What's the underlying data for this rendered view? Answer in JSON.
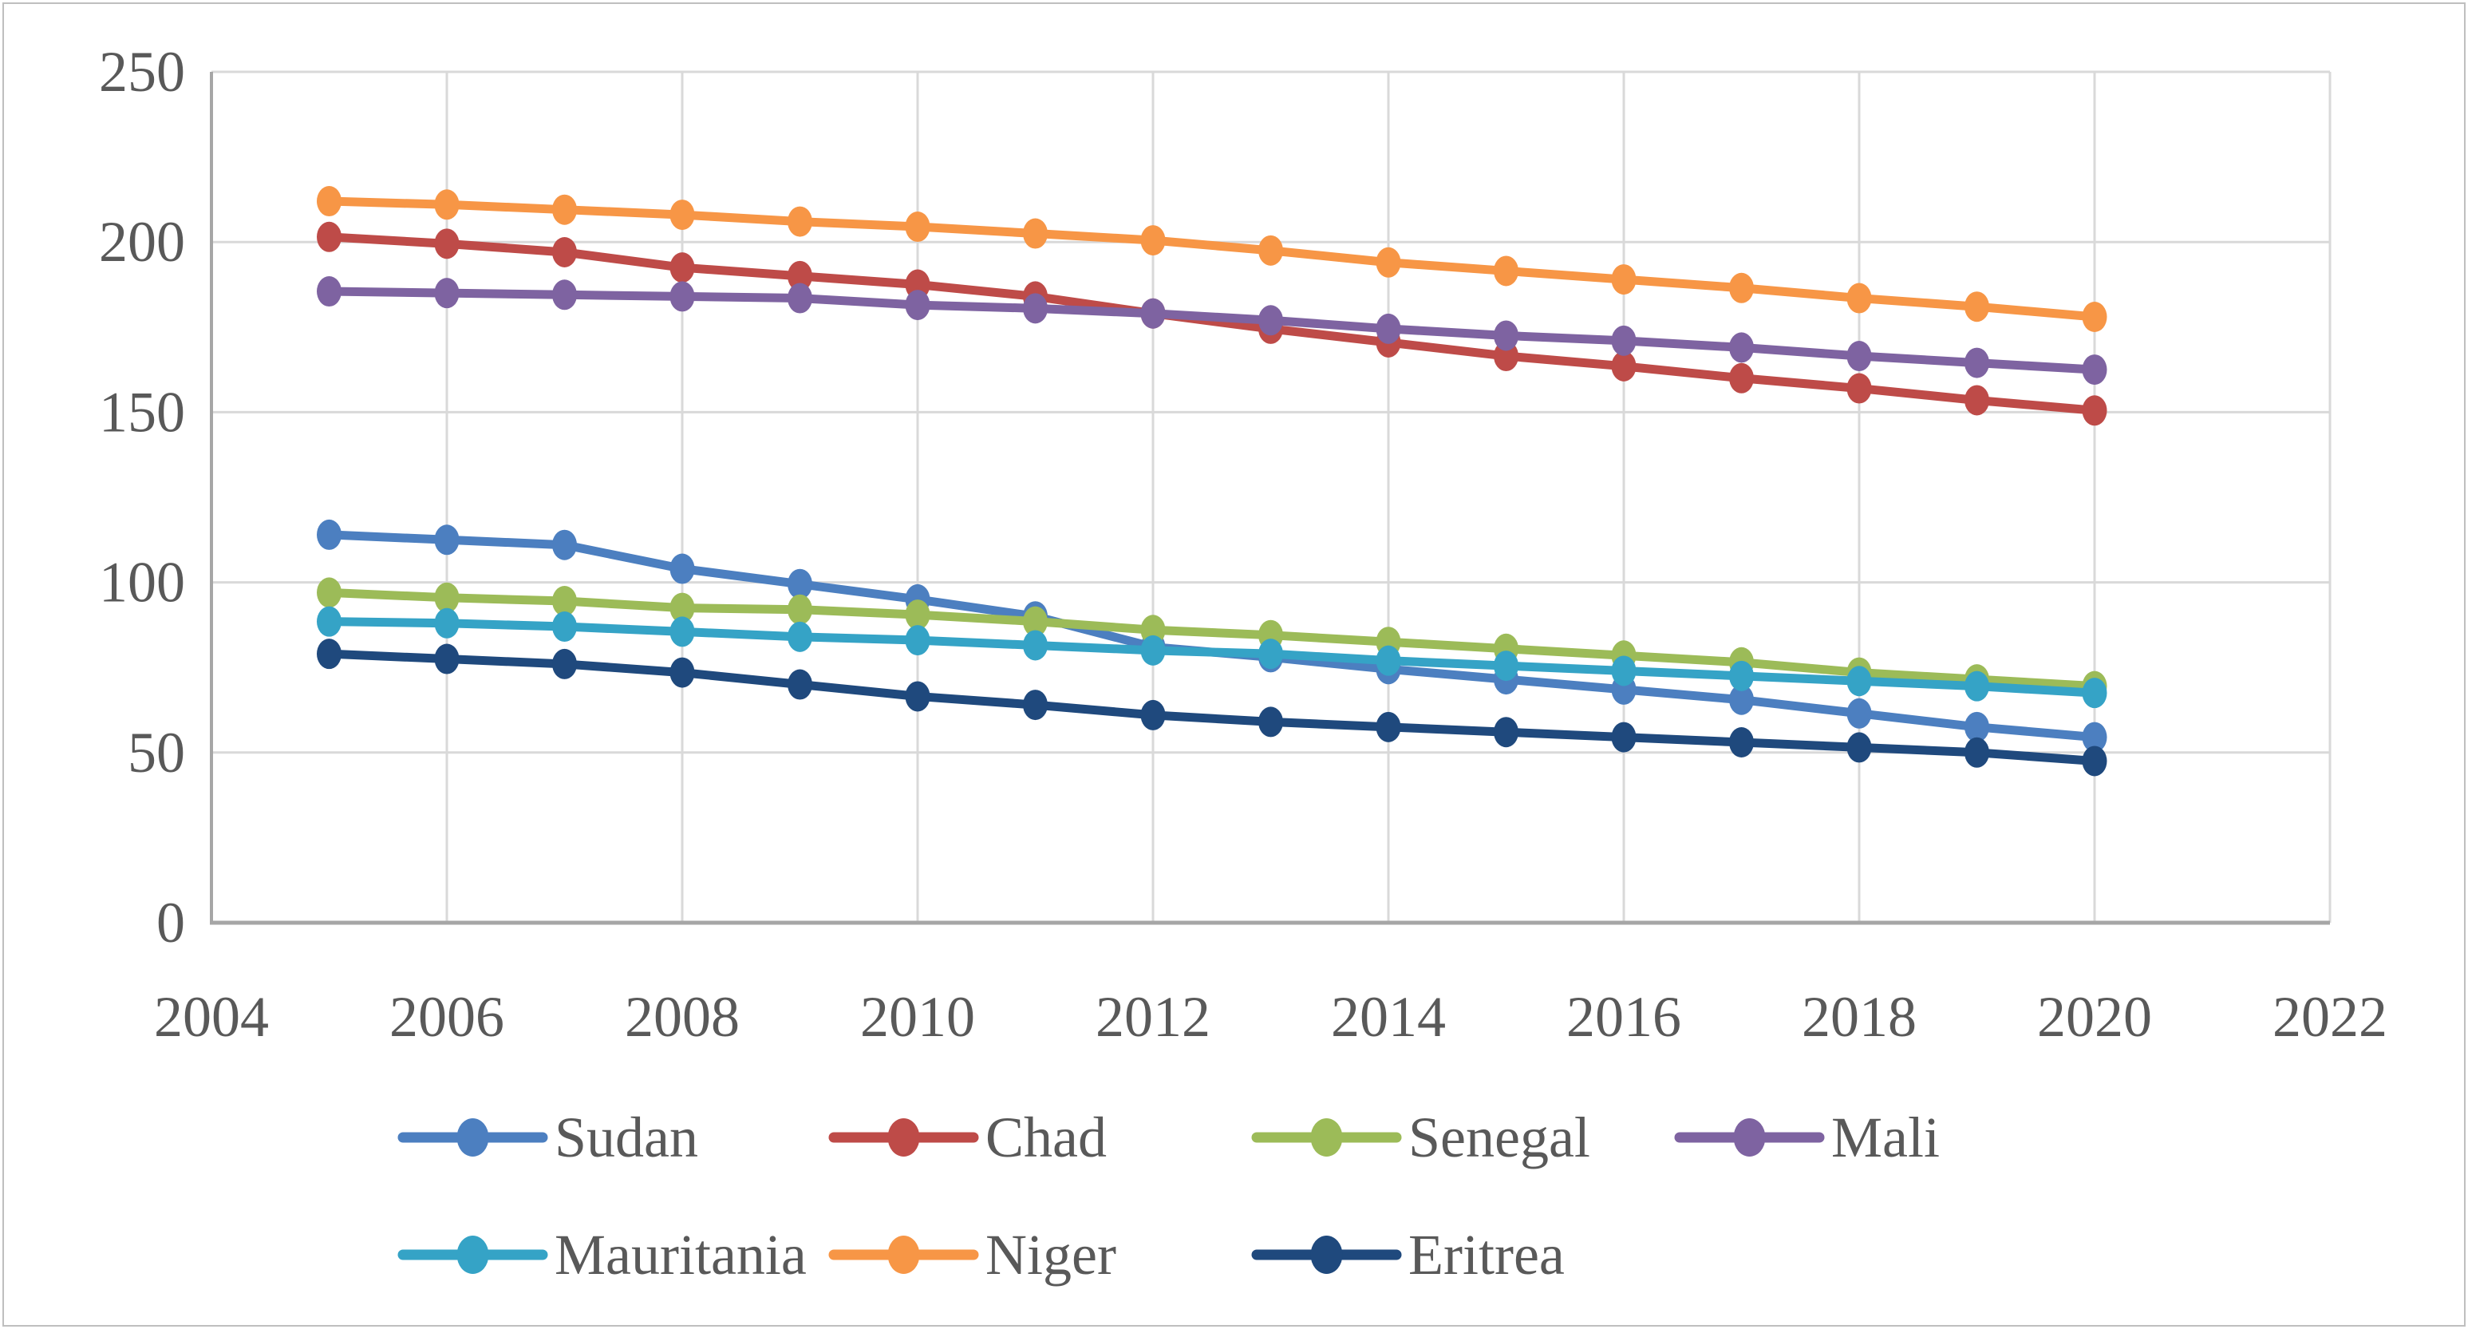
{
  "figure": {
    "background": "#FFFFFF",
    "border_color": "#BFBFBF"
  },
  "chart_data": {
    "type": "line",
    "title": "",
    "xlabel": "",
    "ylabel": "",
    "x": [
      2005,
      2006,
      2007,
      2008,
      2009,
      2010,
      2011,
      2012,
      2013,
      2014,
      2015,
      2016,
      2017,
      2018,
      2019,
      2020
    ],
    "series": [
      {
        "name": "Sudan",
        "color": "#4C7FC0",
        "values": [
          114,
          112.5,
          111,
          104,
          99.5,
          95,
          90,
          81,
          78,
          74.5,
          71.5,
          68.5,
          65.5,
          61.5,
          57.5,
          54.5
        ]
      },
      {
        "name": "Chad",
        "color": "#BE4B48",
        "values": [
          201.5,
          199.5,
          197,
          192.5,
          190,
          187.5,
          184,
          179,
          174.5,
          170.5,
          166.5,
          163.5,
          160,
          157,
          153.5,
          150.5
        ]
      },
      {
        "name": "Senegal",
        "color": "#9CBB58",
        "values": [
          97,
          95.5,
          94.5,
          92.5,
          92,
          90.5,
          88.5,
          86,
          84.5,
          82.5,
          80.5,
          78.5,
          76.5,
          73.5,
          71.5,
          69.5
        ]
      },
      {
        "name": "Mali",
        "color": "#7E63A1",
        "values": [
          185.5,
          185,
          184.5,
          184,
          183.5,
          181.5,
          180.5,
          179,
          177,
          174.5,
          172.5,
          171,
          169,
          166.5,
          164.5,
          162.5
        ]
      },
      {
        "name": "Mauritania",
        "color": "#35A3C6",
        "values": [
          88.5,
          88,
          87,
          85.5,
          84,
          83,
          81.5,
          80,
          79,
          77,
          75.5,
          74,
          72.5,
          71,
          69.5,
          67.5
        ]
      },
      {
        "name": "Niger",
        "color": "#F79646",
        "values": [
          212,
          211,
          209.5,
          208,
          206,
          204.5,
          202.5,
          200.5,
          197.5,
          194,
          191.5,
          189,
          186.5,
          183.5,
          181,
          178
        ]
      },
      {
        "name": "Eritrea",
        "color": "#1F497D",
        "values": [
          79,
          77.5,
          76,
          73.5,
          70,
          66.5,
          64,
          61,
          59,
          57.5,
          56,
          54.5,
          53,
          51.5,
          50,
          47.5
        ]
      }
    ],
    "x_axis": {
      "min": 2004,
      "max": 2022,
      "tick_step": 2,
      "ticks": [
        "2004",
        "2006",
        "2008",
        "2010",
        "2012",
        "2014",
        "2016",
        "2018",
        "2020",
        "2022"
      ]
    },
    "y_axis": {
      "min": 0,
      "max": 250,
      "tick_step": 50,
      "ticks": [
        "250",
        "200",
        "150",
        "100",
        "50",
        "0"
      ]
    },
    "ylim": [
      0,
      250
    ],
    "grid": {
      "show": true,
      "color": "#D9D9D9"
    },
    "axis_line_color": "#A6A6A6",
    "tick_label_color": "#595959",
    "legend": {
      "position": "bottom",
      "text_color": "#595959",
      "rows": [
        [
          "Sudan",
          "Chad",
          "Senegal",
          "Mali"
        ],
        [
          "Mauritania",
          "Niger",
          "Eritrea"
        ]
      ]
    }
  }
}
